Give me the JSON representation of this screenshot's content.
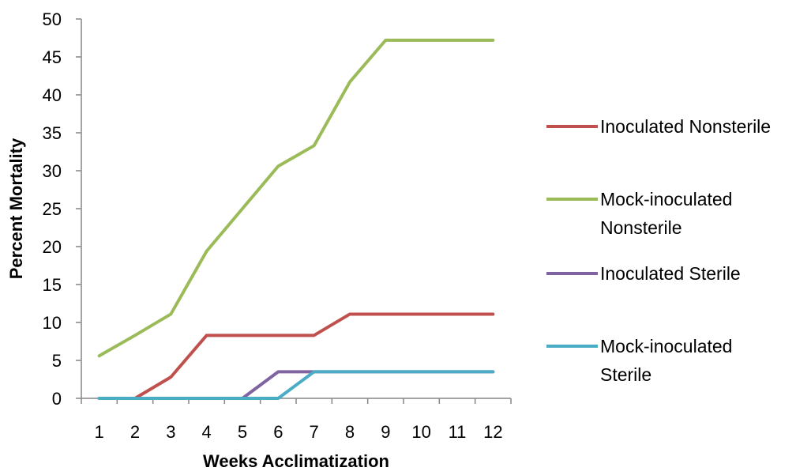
{
  "chart_data": {
    "type": "line",
    "title": "",
    "xlabel": "Weeks Acclimatization",
    "ylabel": "Percent Mortality",
    "categories": [
      "1",
      "2",
      "3",
      "4",
      "5",
      "6",
      "7",
      "8",
      "9",
      "10",
      "11",
      "12"
    ],
    "ylim": [
      0,
      50
    ],
    "yticks": [
      "0",
      "5",
      "10",
      "15",
      "20",
      "25",
      "30",
      "35",
      "40",
      "45",
      "50"
    ],
    "grid": false,
    "legend_position": "right",
    "series": [
      {
        "name": "Inoculated Nonsterile",
        "legend_lines": [
          "Inoculated Nonsterile"
        ],
        "color": "#c0504d",
        "values": [
          0,
          0,
          2.8,
          8.3,
          8.3,
          8.3,
          8.3,
          11.1,
          11.1,
          11.1,
          11.1,
          11.1
        ]
      },
      {
        "name": "Mock-inoculated Nonsterile",
        "legend_lines": [
          "Mock-inoculated",
          "Nonsterile"
        ],
        "color": "#9bbb59",
        "values": [
          5.6,
          8.3,
          11.1,
          19.4,
          25,
          30.6,
          33.3,
          41.7,
          47.2,
          47.2,
          47.2,
          47.2
        ]
      },
      {
        "name": "Inoculated Sterile",
        "legend_lines": [
          "Inoculated Sterile"
        ],
        "color": "#8064a2",
        "values": [
          0,
          0,
          0,
          0,
          0,
          3.5,
          3.5,
          3.5,
          3.5,
          3.5,
          3.5,
          3.5
        ]
      },
      {
        "name": "Mock-inoculated Sterile",
        "legend_lines": [
          "Mock-inoculated",
          "Sterile"
        ],
        "color": "#4bacc6",
        "values": [
          0,
          0,
          0,
          0,
          0,
          0,
          3.5,
          3.5,
          3.5,
          3.5,
          3.5,
          3.5
        ]
      }
    ]
  }
}
